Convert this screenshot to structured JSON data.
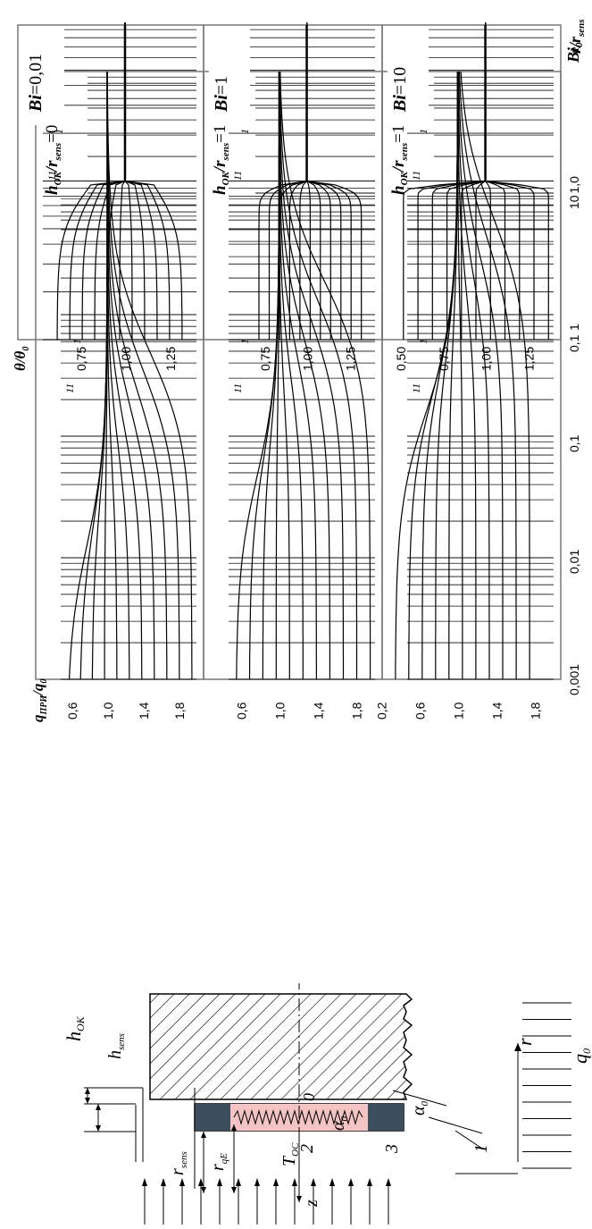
{
  "figure": {
    "left_diagram": {
      "labels": {
        "h_ok": "h",
        "h_ok_sub": "OK",
        "h_sens": "h",
        "h_sens_sub": "sens",
        "r_sens": "r",
        "r_sens_sub": "sens",
        "r_qe": "r",
        "r_qe_sub": "qE",
        "z": "z",
        "r": "r",
        "t_oc": "T",
        "t_oc_sub": "OC",
        "alpha1": "α",
        "alpha1_sub": "0",
        "alpha2": "α",
        "alpha2_sub": "0",
        "q0": "q",
        "q0_sub": "0",
        "origin": "0",
        "n1": "1",
        "n2": "2",
        "n3": "3"
      }
    },
    "middle_chart": {
      "ylabel_main": "q",
      "ylabel_sub": "ПРИ",
      "ylabel_den": "/q",
      "ylabel_den_sub": "0",
      "xlabel_main": "Bi",
      "xlabel_sub": "0",
      "x_ticks": [
        "0,001",
        "0,01",
        "0,1",
        "1",
        "10"
      ],
      "panels": [
        {
          "label_pre": "h",
          "label_sub": "OK",
          "label_mid": "/r",
          "label_sub2": "sens",
          "label_val": "=0,01",
          "y_ticks": [
            "1,8",
            "1,4",
            "1,0",
            "0,6"
          ],
          "curve_first": "1",
          "curve_last": "11"
        },
        {
          "label_pre": "h",
          "label_sub": "OK",
          "label_mid": "/r",
          "label_sub2": "sens",
          "label_val": "=1",
          "y_ticks": [
            "1,8",
            "1,4",
            "1,0",
            "0,6"
          ],
          "curve_first": "1",
          "curve_last": "11"
        },
        {
          "label_pre": "h",
          "label_sub": "OK",
          "label_mid": "/r",
          "label_sub2": "sens",
          "label_val": "=10",
          "y_ticks": [
            "1,8",
            "1,4",
            "1,0",
            "0,6",
            "0,2"
          ],
          "curve_first": "1",
          "curve_last": "11"
        }
      ]
    },
    "right_chart": {
      "ylabel_main": "θ/θ",
      "ylabel_sub": "0",
      "xlabel_main": "r/r",
      "xlabel_sub": "sens",
      "x_ticks": [
        "0,1",
        "1,0"
      ],
      "panels": [
        {
          "label_pre": "Bi",
          "label_val": "=0,01",
          "y_ticks": [
            "1,25",
            "1,00",
            "0,75"
          ],
          "curve_first": "1",
          "curve_last": "11"
        },
        {
          "label_pre": "Bi",
          "label_val": "=1",
          "y_ticks": [
            "1,25",
            "1,00",
            "0,75"
          ],
          "curve_first": "1",
          "curve_last": "11"
        },
        {
          "label_pre": "Bi",
          "label_val": "=10",
          "y_ticks": [
            "1,25",
            "1,00",
            "0,75",
            "0,50"
          ],
          "curve_first": "1",
          "curve_last": "11"
        }
      ]
    }
  },
  "chart_data": [
    {
      "type": "line",
      "xlabel": "Bi0",
      "ylabel": "qПРИ/q0",
      "x_scale": "log",
      "xlim": [
        0.001,
        100
      ],
      "ylim": [
        0.4,
        2.0
      ],
      "panels": [
        {
          "title": "hOK/rsens=0,01",
          "curves": 11
        },
        {
          "title": "hOK/rsens=1",
          "curves": 11
        },
        {
          "title": "hOK/rsens=10",
          "curves": 11
        }
      ],
      "curve_labels": [
        "1",
        "11"
      ]
    },
    {
      "type": "line",
      "xlabel": "r/rsens",
      "ylabel": "θ/θ0",
      "x_scale": "log",
      "xlim": [
        0.1,
        10
      ],
      "ylim": [
        0.5,
        1.4
      ],
      "panels": [
        {
          "title": "Bi=0,01",
          "curves": 11
        },
        {
          "title": "Bi=1",
          "curves": 11
        },
        {
          "title": "Bi=10",
          "curves": 11
        }
      ],
      "curve_labels": [
        "1",
        "11"
      ]
    }
  ]
}
